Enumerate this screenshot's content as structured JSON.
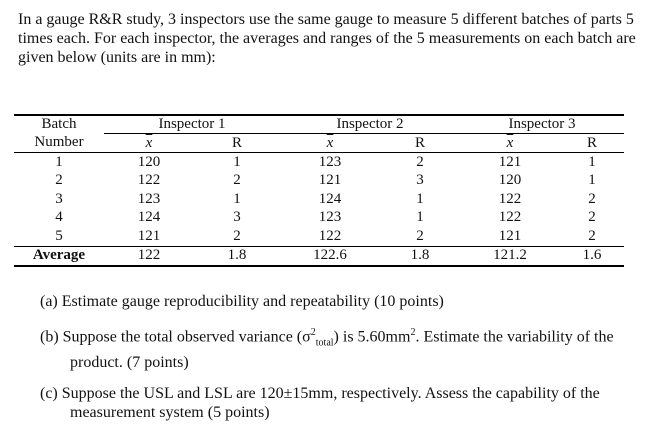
{
  "intro": "In a gauge R&R study, 3 inspectors use the same gauge to measure 5 different batches of parts 5 times each. For each inspector, the averages and ranges of the 5 measurements on each batch are given below (units are in mm):",
  "table": {
    "batch_header_line1": "Batch",
    "batch_header_line2": "Number",
    "inspectors": [
      "Inspector 1",
      "Inspector 2",
      "Inspector 3"
    ],
    "xbar_label": "x",
    "range_label": "R",
    "rows": [
      {
        "batch": "1",
        "cells": [
          "120",
          "1",
          "123",
          "2",
          "121",
          "1"
        ]
      },
      {
        "batch": "2",
        "cells": [
          "122",
          "2",
          "121",
          "3",
          "120",
          "1"
        ]
      },
      {
        "batch": "3",
        "cells": [
          "123",
          "1",
          "124",
          "1",
          "122",
          "2"
        ]
      },
      {
        "batch": "4",
        "cells": [
          "124",
          "3",
          "123",
          "1",
          "122",
          "2"
        ]
      },
      {
        "batch": "5",
        "cells": [
          "121",
          "2",
          "122",
          "2",
          "121",
          "2"
        ]
      }
    ],
    "average_label": "Average",
    "averages": [
      "122",
      "1.8",
      "122.6",
      "1.8",
      "121.2",
      "1.6"
    ]
  },
  "questions": {
    "a": "(a) Estimate gauge reproducibility and repeatability (10 points)",
    "b_prefix": "(b) Suppose the total observed variance (σ",
    "b_sup": "2",
    "b_sub": "total",
    "b_mid": ") is 5.60mm",
    "b_sup2": "2",
    "b_suffix": ". Estimate the variability of the product. (7 points)",
    "c": "(c) Suppose the USL and LSL are 120±15mm, respectively. Assess the capability of the measurement system (5 points)"
  }
}
